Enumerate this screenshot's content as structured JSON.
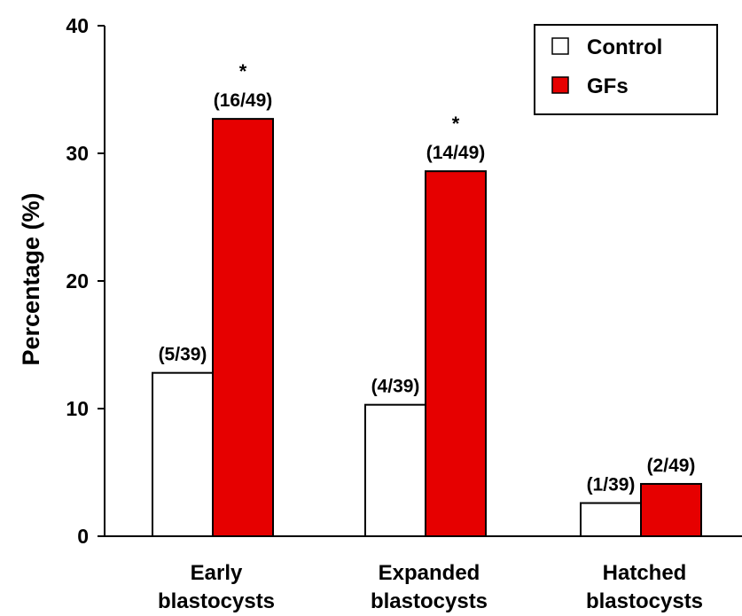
{
  "chart_data": {
    "type": "bar",
    "title": "",
    "xlabel": "",
    "ylabel": "Percentage (%)",
    "ylim": [
      0,
      40
    ],
    "yticks": [
      "0",
      "10",
      "20",
      "30",
      "40"
    ],
    "grid": false,
    "legend_position": "top-right",
    "categories": [
      [
        "Early",
        "blastocysts"
      ],
      [
        "Expanded",
        "blastocysts"
      ],
      [
        "Hatched",
        "blastocysts"
      ]
    ],
    "series": [
      {
        "name": "Control",
        "color": "#ffffff",
        "values": [
          12.8,
          10.3,
          2.6
        ],
        "labels": [
          "(5/39)",
          "(4/39)",
          "(1/39)"
        ],
        "stars": [
          "",
          "",
          ""
        ]
      },
      {
        "name": "GFs",
        "color": "#e60000",
        "values": [
          32.7,
          28.6,
          4.1
        ],
        "labels": [
          "(16/49)",
          "(14/49)",
          "(2/49)"
        ],
        "stars": [
          "*",
          "*",
          ""
        ]
      }
    ]
  }
}
